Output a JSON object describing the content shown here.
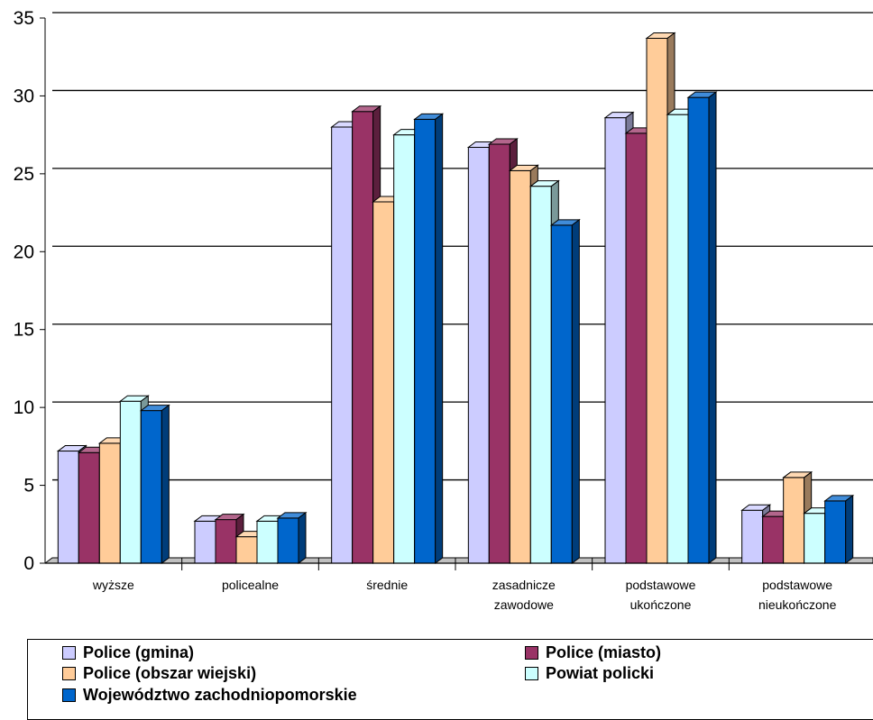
{
  "chart_data": {
    "type": "bar",
    "categories": [
      [
        "wyższe"
      ],
      [
        "policealne"
      ],
      [
        "średnie"
      ],
      [
        "zasadnicze",
        "zawodowe"
      ],
      [
        "podstawowe",
        "ukończone"
      ],
      [
        "podstawowe",
        "nieukończone"
      ]
    ],
    "series": [
      {
        "name": "Police (gmina)",
        "color": "#ccccff",
        "values": [
          7.2,
          2.7,
          28.0,
          26.7,
          28.6,
          3.4
        ]
      },
      {
        "name": "Police (miasto)",
        "color": "#993366",
        "values": [
          7.1,
          2.8,
          29.0,
          26.9,
          27.6,
          3.0
        ]
      },
      {
        "name": "Police (obszar wiejski)",
        "color": "#ffcc99",
        "values": [
          7.7,
          1.7,
          23.2,
          25.2,
          33.7,
          5.5
        ]
      },
      {
        "name": "Powiat policki",
        "color": "#ccffff",
        "values": [
          10.4,
          2.7,
          27.5,
          24.2,
          28.8,
          3.2
        ]
      },
      {
        "name": "Województwo zachodniopomorskie",
        "color": "#0066cc",
        "values": [
          9.8,
          2.9,
          28.5,
          21.7,
          29.9,
          4.0
        ]
      }
    ],
    "yticks": [
      "0",
      "5",
      "10",
      "15",
      "20",
      "25",
      "30",
      "35"
    ],
    "ylim": [
      0,
      35
    ],
    "grid": true,
    "legend_position": "bottom"
  }
}
